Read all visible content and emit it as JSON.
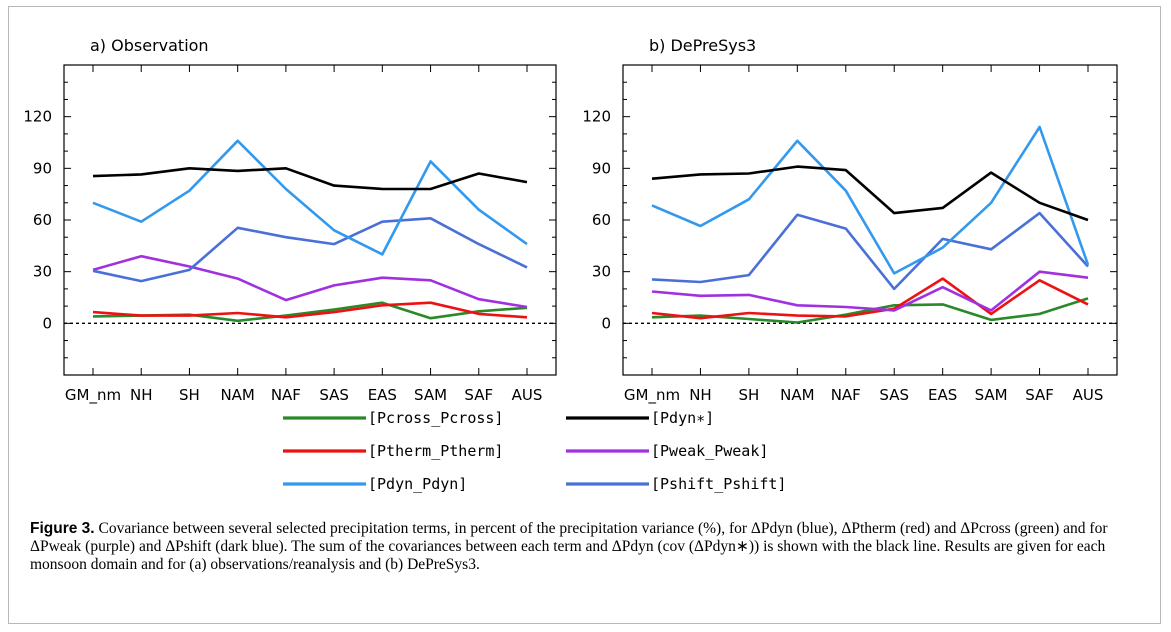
{
  "caption": {
    "label": "Figure 3.",
    "text": "Covariance between several selected precipitation terms, in percent of the precipitation variance (%), for ΔPdyn (blue), ΔPtherm (red) and ΔPcross (green) and for ΔPweak (purple) and ΔPshift (dark blue). The sum of the covariances between each term and ΔPdyn (cov (ΔPdyn∗)) is shown with the black line. Results are given for each monsoon domain and for (a) observations/reanalysis and (b) DePreSys3."
  },
  "legend": [
    {
      "label": "[Pcross_Pcross]",
      "color": "#2a8a2a"
    },
    {
      "label": "[Pdyn∗]",
      "color": "#000000"
    },
    {
      "label": "[Ptherm_Ptherm]",
      "color": "#ee1111"
    },
    {
      "label": "[Pweak_Pweak]",
      "color": "#a030e0"
    },
    {
      "label": "[Pdyn_Pdyn]",
      "color": "#3399ee"
    },
    {
      "label": "[Pshift_Pshift]",
      "color": "#4a70d8"
    }
  ],
  "chart_data": [
    {
      "type": "line",
      "title": "a) Observation",
      "categories": [
        "GM_nm",
        "NH",
        "SH",
        "NAM",
        "NAF",
        "SAS",
        "EAS",
        "SAM",
        "SAF",
        "AUS"
      ],
      "ylim": [
        -30,
        150
      ],
      "yticks": [
        0,
        30,
        60,
        90,
        120
      ],
      "reference_line": 0,
      "grid": false,
      "series": [
        {
          "name": "[Pdyn∗]",
          "color": "#000000",
          "values": [
            85.5,
            86.5,
            90,
            88.5,
            90,
            80,
            78,
            78,
            87,
            82
          ]
        },
        {
          "name": "[Pdyn_Pdyn]",
          "color": "#3399ee",
          "values": [
            70,
            59,
            77,
            106,
            78,
            54,
            40,
            94,
            66,
            46
          ]
        },
        {
          "name": "[Pshift_Pshift]",
          "color": "#4a70d8",
          "values": [
            30.5,
            24.5,
            31,
            55.5,
            50,
            46,
            59,
            61,
            46,
            32.5
          ]
        },
        {
          "name": "[Pweak_Pweak]",
          "color": "#a030e0",
          "values": [
            31,
            39,
            33,
            26,
            13.5,
            22,
            26.5,
            25,
            14,
            9.5
          ]
        },
        {
          "name": "[Ptherm_Ptherm]",
          "color": "#ee1111",
          "values": [
            6.5,
            4.5,
            4.5,
            6,
            3.5,
            6.5,
            10.5,
            12,
            5.5,
            3.5
          ]
        },
        {
          "name": "[Pcross_Pcross]",
          "color": "#2a8a2a",
          "values": [
            4,
            4.5,
            5,
            1.5,
            4.5,
            8,
            12,
            3,
            7,
            9
          ]
        }
      ]
    },
    {
      "type": "line",
      "title": "b) DePreSys3",
      "categories": [
        "GM_nm",
        "NH",
        "SH",
        "NAM",
        "NAF",
        "SAS",
        "EAS",
        "SAM",
        "SAF",
        "AUS"
      ],
      "ylim": [
        -30,
        150
      ],
      "yticks": [
        0,
        30,
        60,
        90,
        120
      ],
      "reference_line": 0,
      "grid": false,
      "series": [
        {
          "name": "[Pdyn∗]",
          "color": "#000000",
          "values": [
            84,
            86.5,
            87,
            91,
            89,
            64,
            67,
            87.5,
            70,
            60
          ]
        },
        {
          "name": "[Pdyn_Pdyn]",
          "color": "#3399ee",
          "values": [
            68.5,
            56.5,
            72,
            106,
            77,
            29,
            44,
            70,
            114,
            34
          ]
        },
        {
          "name": "[Pshift_Pshift]",
          "color": "#4a70d8",
          "values": [
            25.5,
            24,
            28,
            63,
            55,
            20,
            49,
            43,
            64,
            33
          ]
        },
        {
          "name": "[Pweak_Pweak]",
          "color": "#a030e0",
          "values": [
            18.5,
            16,
            16.5,
            10.5,
            9.5,
            7.5,
            21,
            7.5,
            30,
            26.5
          ]
        },
        {
          "name": "[Ptherm_Ptherm]",
          "color": "#ee1111",
          "values": [
            6,
            3,
            6,
            4.5,
            4,
            8.5,
            26,
            5.5,
            25,
            11
          ]
        },
        {
          "name": "[Pcross_Pcross]",
          "color": "#2a8a2a",
          "values": [
            3.5,
            4.5,
            2.5,
            0.5,
            5,
            10.5,
            11,
            2,
            5.5,
            14.5
          ]
        }
      ]
    }
  ]
}
